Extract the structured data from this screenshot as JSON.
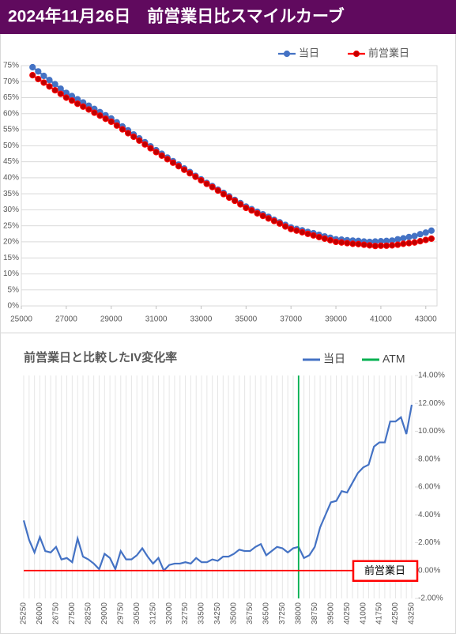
{
  "title": "2024年11月26日　前営業日比スマイルカーブ",
  "chart_data": [
    {
      "type": "line",
      "markers": true,
      "grid": true,
      "legend": "top-right",
      "x": [
        25500,
        25750,
        26000,
        26250,
        26500,
        26750,
        27000,
        27250,
        27500,
        27750,
        28000,
        28250,
        28500,
        28750,
        29000,
        29250,
        29500,
        29750,
        30000,
        30250,
        30500,
        30750,
        31000,
        31250,
        31500,
        31750,
        32000,
        32250,
        32500,
        32750,
        33000,
        33250,
        33500,
        33750,
        34000,
        34250,
        34500,
        34750,
        35000,
        35250,
        35500,
        35750,
        36000,
        36250,
        36500,
        36750,
        37000,
        37250,
        37500,
        37750,
        38000,
        38250,
        38500,
        38750,
        39000,
        39250,
        39500,
        39750,
        40000,
        40250,
        40500,
        40750,
        41000,
        41250,
        41500,
        41750,
        42000,
        42250,
        42500,
        42750,
        43000,
        43250
      ],
      "series": [
        {
          "name": "当日",
          "color": "#4472c4",
          "marker_fill": "#4472c4",
          "values": [
            74.5,
            73.2,
            71.8,
            70.5,
            69.2,
            67.8,
            66.5,
            65.5,
            64.5,
            63.5,
            62.5,
            61.5,
            60.5,
            59.5,
            58.5,
            57.3,
            56.0,
            54.8,
            53.5,
            52.3,
            51.1,
            49.8,
            48.6,
            47.5,
            46.3,
            45.2,
            44.1,
            42.9,
            41.8,
            40.6,
            39.5,
            38.4,
            37.4,
            36.3,
            35.3,
            34.2,
            33.1,
            32.1,
            31.0,
            30.2,
            29.4,
            28.6,
            27.8,
            26.9,
            26.1,
            25.3,
            24.5,
            24.0,
            23.6,
            23.1,
            22.7,
            22.2,
            21.7,
            21.3,
            20.8,
            20.7,
            20.5,
            20.4,
            20.3,
            20.1,
            20.0,
            20.1,
            20.2,
            20.3,
            20.4,
            20.8,
            21.1,
            21.5,
            21.8,
            22.4,
            22.9,
            23.5
          ]
        },
        {
          "name": "前営業日",
          "color": "#ff0000",
          "marker_fill": "#c00000",
          "values": [
            72.0,
            70.8,
            69.7,
            68.5,
            67.3,
            66.2,
            65.0,
            64.1,
            63.1,
            62.2,
            61.3,
            60.3,
            59.4,
            58.4,
            57.5,
            56.3,
            55.1,
            53.9,
            52.8,
            51.6,
            50.4,
            49.2,
            48.0,
            46.9,
            45.8,
            44.7,
            43.6,
            42.5,
            41.4,
            40.3,
            39.2,
            38.1,
            37.1,
            36.0,
            34.9,
            33.8,
            32.8,
            31.7,
            30.6,
            29.8,
            28.9,
            28.1,
            27.3,
            26.5,
            25.7,
            24.8,
            24.0,
            23.5,
            23.0,
            22.5,
            22.0,
            21.5,
            21.0,
            20.5,
            20.0,
            19.8,
            19.6,
            19.4,
            19.3,
            19.1,
            18.9,
            18.7,
            18.8,
            18.8,
            18.9,
            19.1,
            19.4,
            19.6,
            19.8,
            20.2,
            20.6,
            21.0
          ]
        }
      ],
      "xlim": [
        25000,
        43500
      ],
      "xticks": [
        25000,
        27000,
        29000,
        31000,
        33000,
        35000,
        37000,
        39000,
        41000,
        43000
      ],
      "ylim": [
        0,
        75
      ],
      "yticks": [
        {
          "value": 0,
          "label": "0%"
        },
        {
          "value": 5,
          "label": "5%"
        },
        {
          "value": 10,
          "label": "10%"
        },
        {
          "value": 15,
          "label": "15%"
        },
        {
          "value": 20,
          "label": "20%"
        },
        {
          "value": 25,
          "label": "25%"
        },
        {
          "value": 30,
          "label": "30%"
        },
        {
          "value": 35,
          "label": "35%"
        },
        {
          "value": 40,
          "label": "40%"
        },
        {
          "value": 45,
          "label": "45%"
        },
        {
          "value": 50,
          "label": "50%"
        },
        {
          "value": 55,
          "label": "55%"
        },
        {
          "value": 60,
          "label": "60%"
        },
        {
          "value": 65,
          "label": "65%"
        },
        {
          "value": 70,
          "label": "70%"
        },
        {
          "value": 75,
          "label": "75%"
        }
      ]
    },
    {
      "type": "line",
      "markers": false,
      "grid": true,
      "legend": "top-right",
      "title": "前営業日と比較したIV変化率",
      "categories": [
        "25250",
        null,
        null,
        "26000",
        null,
        null,
        "26750",
        null,
        null,
        "27500",
        null,
        null,
        "28250",
        null,
        null,
        "29000",
        null,
        null,
        "29750",
        null,
        null,
        "30500",
        null,
        null,
        "31250",
        null,
        null,
        "32000",
        null,
        null,
        "32750",
        null,
        null,
        "33500",
        null,
        null,
        "34250",
        null,
        null,
        "35000",
        null,
        null,
        "35750",
        null,
        null,
        "36500",
        null,
        null,
        "37250",
        null,
        null,
        "38000",
        null,
        null,
        "38750",
        null,
        null,
        "39500",
        null,
        null,
        "40250",
        null,
        null,
        "41000",
        null,
        null,
        "41750",
        null,
        null,
        "42500",
        null,
        null,
        "43250"
      ],
      "series": [
        {
          "name": "当日",
          "color": "#4472c4",
          "axis": "y2",
          "values": [
            3.6,
            2.2,
            1.3,
            2.4,
            1.4,
            1.3,
            1.7,
            0.8,
            0.9,
            0.6,
            2.3,
            1.0,
            0.8,
            0.5,
            0.1,
            1.2,
            0.9,
            0.1,
            1.4,
            0.8,
            0.8,
            1.1,
            1.6,
            1.0,
            0.5,
            0.9,
            0.0,
            0.4,
            0.5,
            0.5,
            0.6,
            0.5,
            0.9,
            0.6,
            0.6,
            0.8,
            0.7,
            1.0,
            1.0,
            1.2,
            1.5,
            1.4,
            1.4,
            1.7,
            1.9,
            1.1,
            1.4,
            1.7,
            1.6,
            1.3,
            1.6,
            1.7,
            0.9,
            1.1,
            1.7,
            3.1,
            4.0,
            4.9,
            5.0,
            5.7,
            5.6,
            6.3,
            7.0,
            7.4,
            7.6,
            8.9,
            9.2,
            9.2,
            10.7,
            10.7,
            11.0,
            9.8,
            11.9
          ]
        }
      ],
      "reference_lines": [
        {
          "name": "ATM",
          "color": "#00b050",
          "x": "38000"
        }
      ],
      "baseline": {
        "label": "前営業日",
        "value": 0,
        "color": "#ff0000"
      },
      "y2lim": [
        -2,
        14
      ],
      "y2ticks": [
        {
          "value": -2,
          "label": "-2.00%"
        },
        {
          "value": 0,
          "label": "0.00%"
        },
        {
          "value": 2,
          "label": "2.00%"
        },
        {
          "value": 4,
          "label": "4.00%"
        },
        {
          "value": 6,
          "label": "6.00%"
        },
        {
          "value": 8,
          "label": "8.00%"
        },
        {
          "value": 10,
          "label": "10.00%"
        },
        {
          "value": 12,
          "label": "12.00%"
        },
        {
          "value": 14,
          "label": "14.00%"
        }
      ]
    }
  ]
}
